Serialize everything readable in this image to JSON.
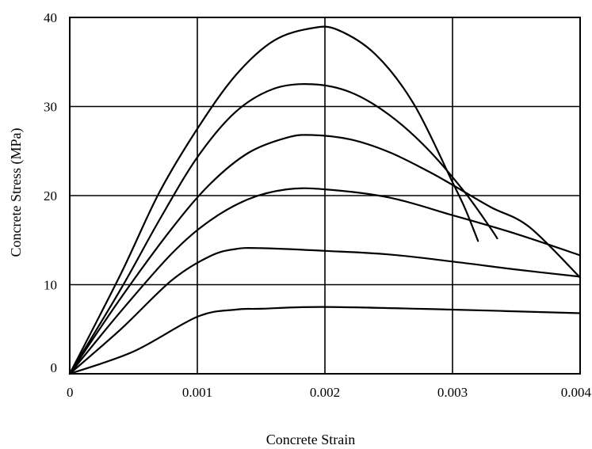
{
  "chart_data": {
    "type": "line",
    "xlabel": "Concrete Strain",
    "ylabel": "Concrete Stress (MPa)",
    "xlim": [
      0,
      0.004
    ],
    "ylim": [
      0,
      40
    ],
    "x_ticks": [
      "0",
      "0.001",
      "0.002",
      "0.003",
      "0.004"
    ],
    "y_ticks": [
      "0",
      "10",
      "20",
      "30",
      "40"
    ],
    "grid": true,
    "series": [
      {
        "points": [
          [
            0,
            0
          ],
          [
            0.0005,
            2.5
          ],
          [
            0.001,
            6.4
          ],
          [
            0.0013,
            7.2
          ],
          [
            0.0015,
            7.3
          ],
          [
            0.002,
            7.5
          ],
          [
            0.003,
            7.2
          ],
          [
            0.004,
            6.8
          ]
        ]
      },
      {
        "points": [
          [
            0,
            0
          ],
          [
            0.0004,
            5
          ],
          [
            0.0008,
            10.5
          ],
          [
            0.0011,
            13.2
          ],
          [
            0.0013,
            14
          ],
          [
            0.0015,
            14.1
          ],
          [
            0.002,
            13.8
          ],
          [
            0.0025,
            13.4
          ],
          [
            0.003,
            12.6
          ],
          [
            0.0035,
            11.7
          ],
          [
            0.004,
            10.9
          ]
        ]
      },
      {
        "points": [
          [
            0,
            0
          ],
          [
            0.0004,
            7
          ],
          [
            0.0008,
            13.5
          ],
          [
            0.0011,
            17.2
          ],
          [
            0.0014,
            19.6
          ],
          [
            0.0017,
            20.7
          ],
          [
            0.002,
            20.7
          ],
          [
            0.0025,
            19.8
          ],
          [
            0.003,
            17.8
          ],
          [
            0.0035,
            15.7
          ],
          [
            0.004,
            13.3
          ]
        ]
      },
      {
        "points": [
          [
            0,
            0
          ],
          [
            0.0004,
            8.5
          ],
          [
            0.0008,
            16.3
          ],
          [
            0.0011,
            21.3
          ],
          [
            0.0014,
            24.8
          ],
          [
            0.0017,
            26.5
          ],
          [
            0.0019,
            26.8
          ],
          [
            0.0022,
            26.3
          ],
          [
            0.0025,
            24.9
          ],
          [
            0.0028,
            22.8
          ],
          [
            0.003,
            21.2
          ],
          [
            0.0033,
            18.7
          ],
          [
            0.0036,
            16.5
          ],
          [
            0.004,
            10.8
          ]
        ]
      },
      {
        "points": [
          [
            0,
            0
          ],
          [
            0.0004,
            9.5
          ],
          [
            0.0007,
            17.2
          ],
          [
            0.001,
            24.3
          ],
          [
            0.0013,
            29.4
          ],
          [
            0.0016,
            32
          ],
          [
            0.0019,
            32.5
          ],
          [
            0.0022,
            31.6
          ],
          [
            0.0025,
            29.1
          ],
          [
            0.0028,
            25.3
          ],
          [
            0.0031,
            20.3
          ],
          [
            0.0033,
            16.3
          ],
          [
            0.00335,
            15.2
          ]
        ]
      },
      {
        "points": [
          [
            0,
            0
          ],
          [
            0.0004,
            11.2
          ],
          [
            0.0007,
            20.3
          ],
          [
            0.001,
            27.5
          ],
          [
            0.0013,
            33.5
          ],
          [
            0.0016,
            37.4
          ],
          [
            0.0019,
            38.8
          ],
          [
            0.0021,
            38.6
          ],
          [
            0.0024,
            35.8
          ],
          [
            0.0027,
            30.2
          ],
          [
            0.003,
            21.5
          ],
          [
            0.0031,
            18.5
          ],
          [
            0.0032,
            14.9
          ]
        ]
      }
    ]
  }
}
